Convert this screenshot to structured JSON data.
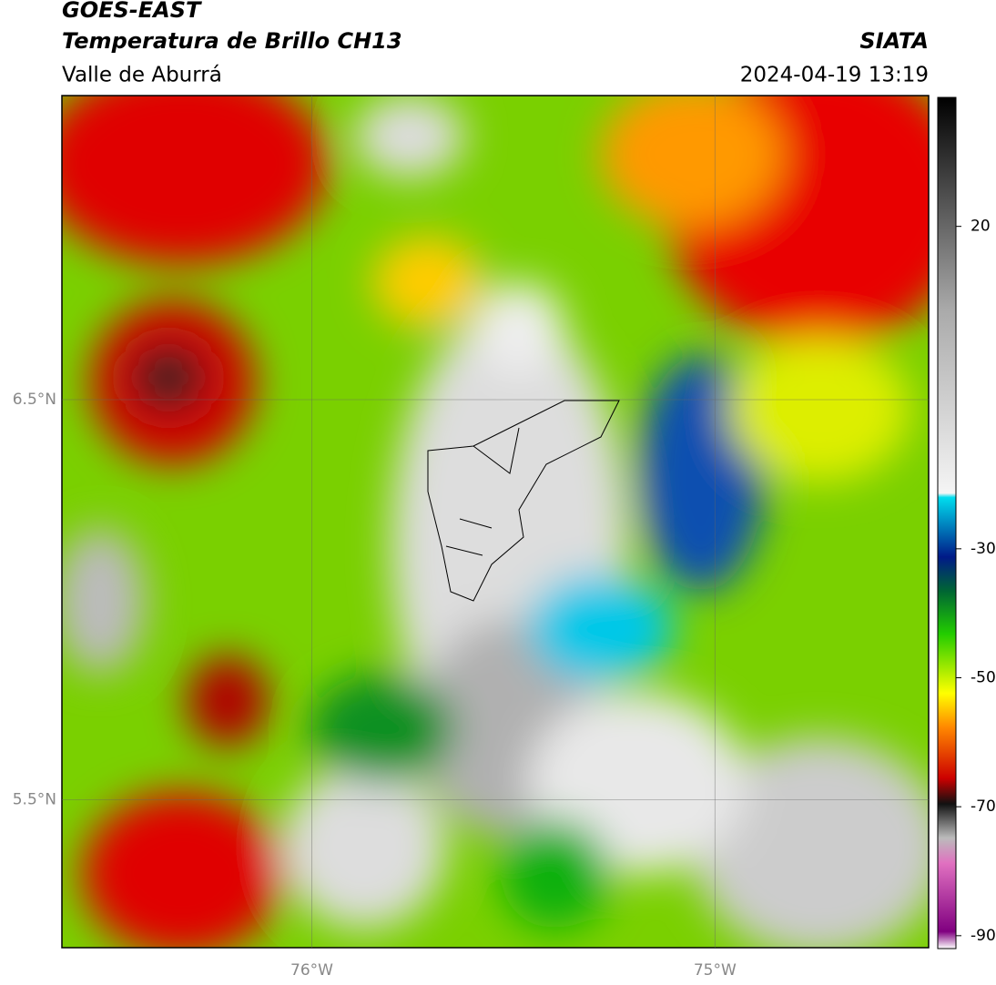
{
  "header": {
    "title": "GOES-EAST",
    "subtitle": "Temperatura de Brillo CH13",
    "region": "Valle de Aburrá",
    "source": "SIATA",
    "datetime": "2024-04-19 13:19"
  },
  "map": {
    "xlim": [
      -76.62,
      -74.47
    ],
    "ylim": [
      5.13,
      7.26
    ],
    "xticks": [
      {
        "value": -76,
        "label": "76°W"
      },
      {
        "value": -75,
        "label": "75°W"
      }
    ],
    "yticks": [
      {
        "value": 6.5,
        "label": "6.5°N"
      },
      {
        "value": 5.5,
        "label": "5.5°N"
      }
    ]
  },
  "colorbar": {
    "lim": [
      -92,
      40
    ],
    "ticks": [
      20,
      -30,
      -50,
      -70,
      -90
    ]
  }
}
